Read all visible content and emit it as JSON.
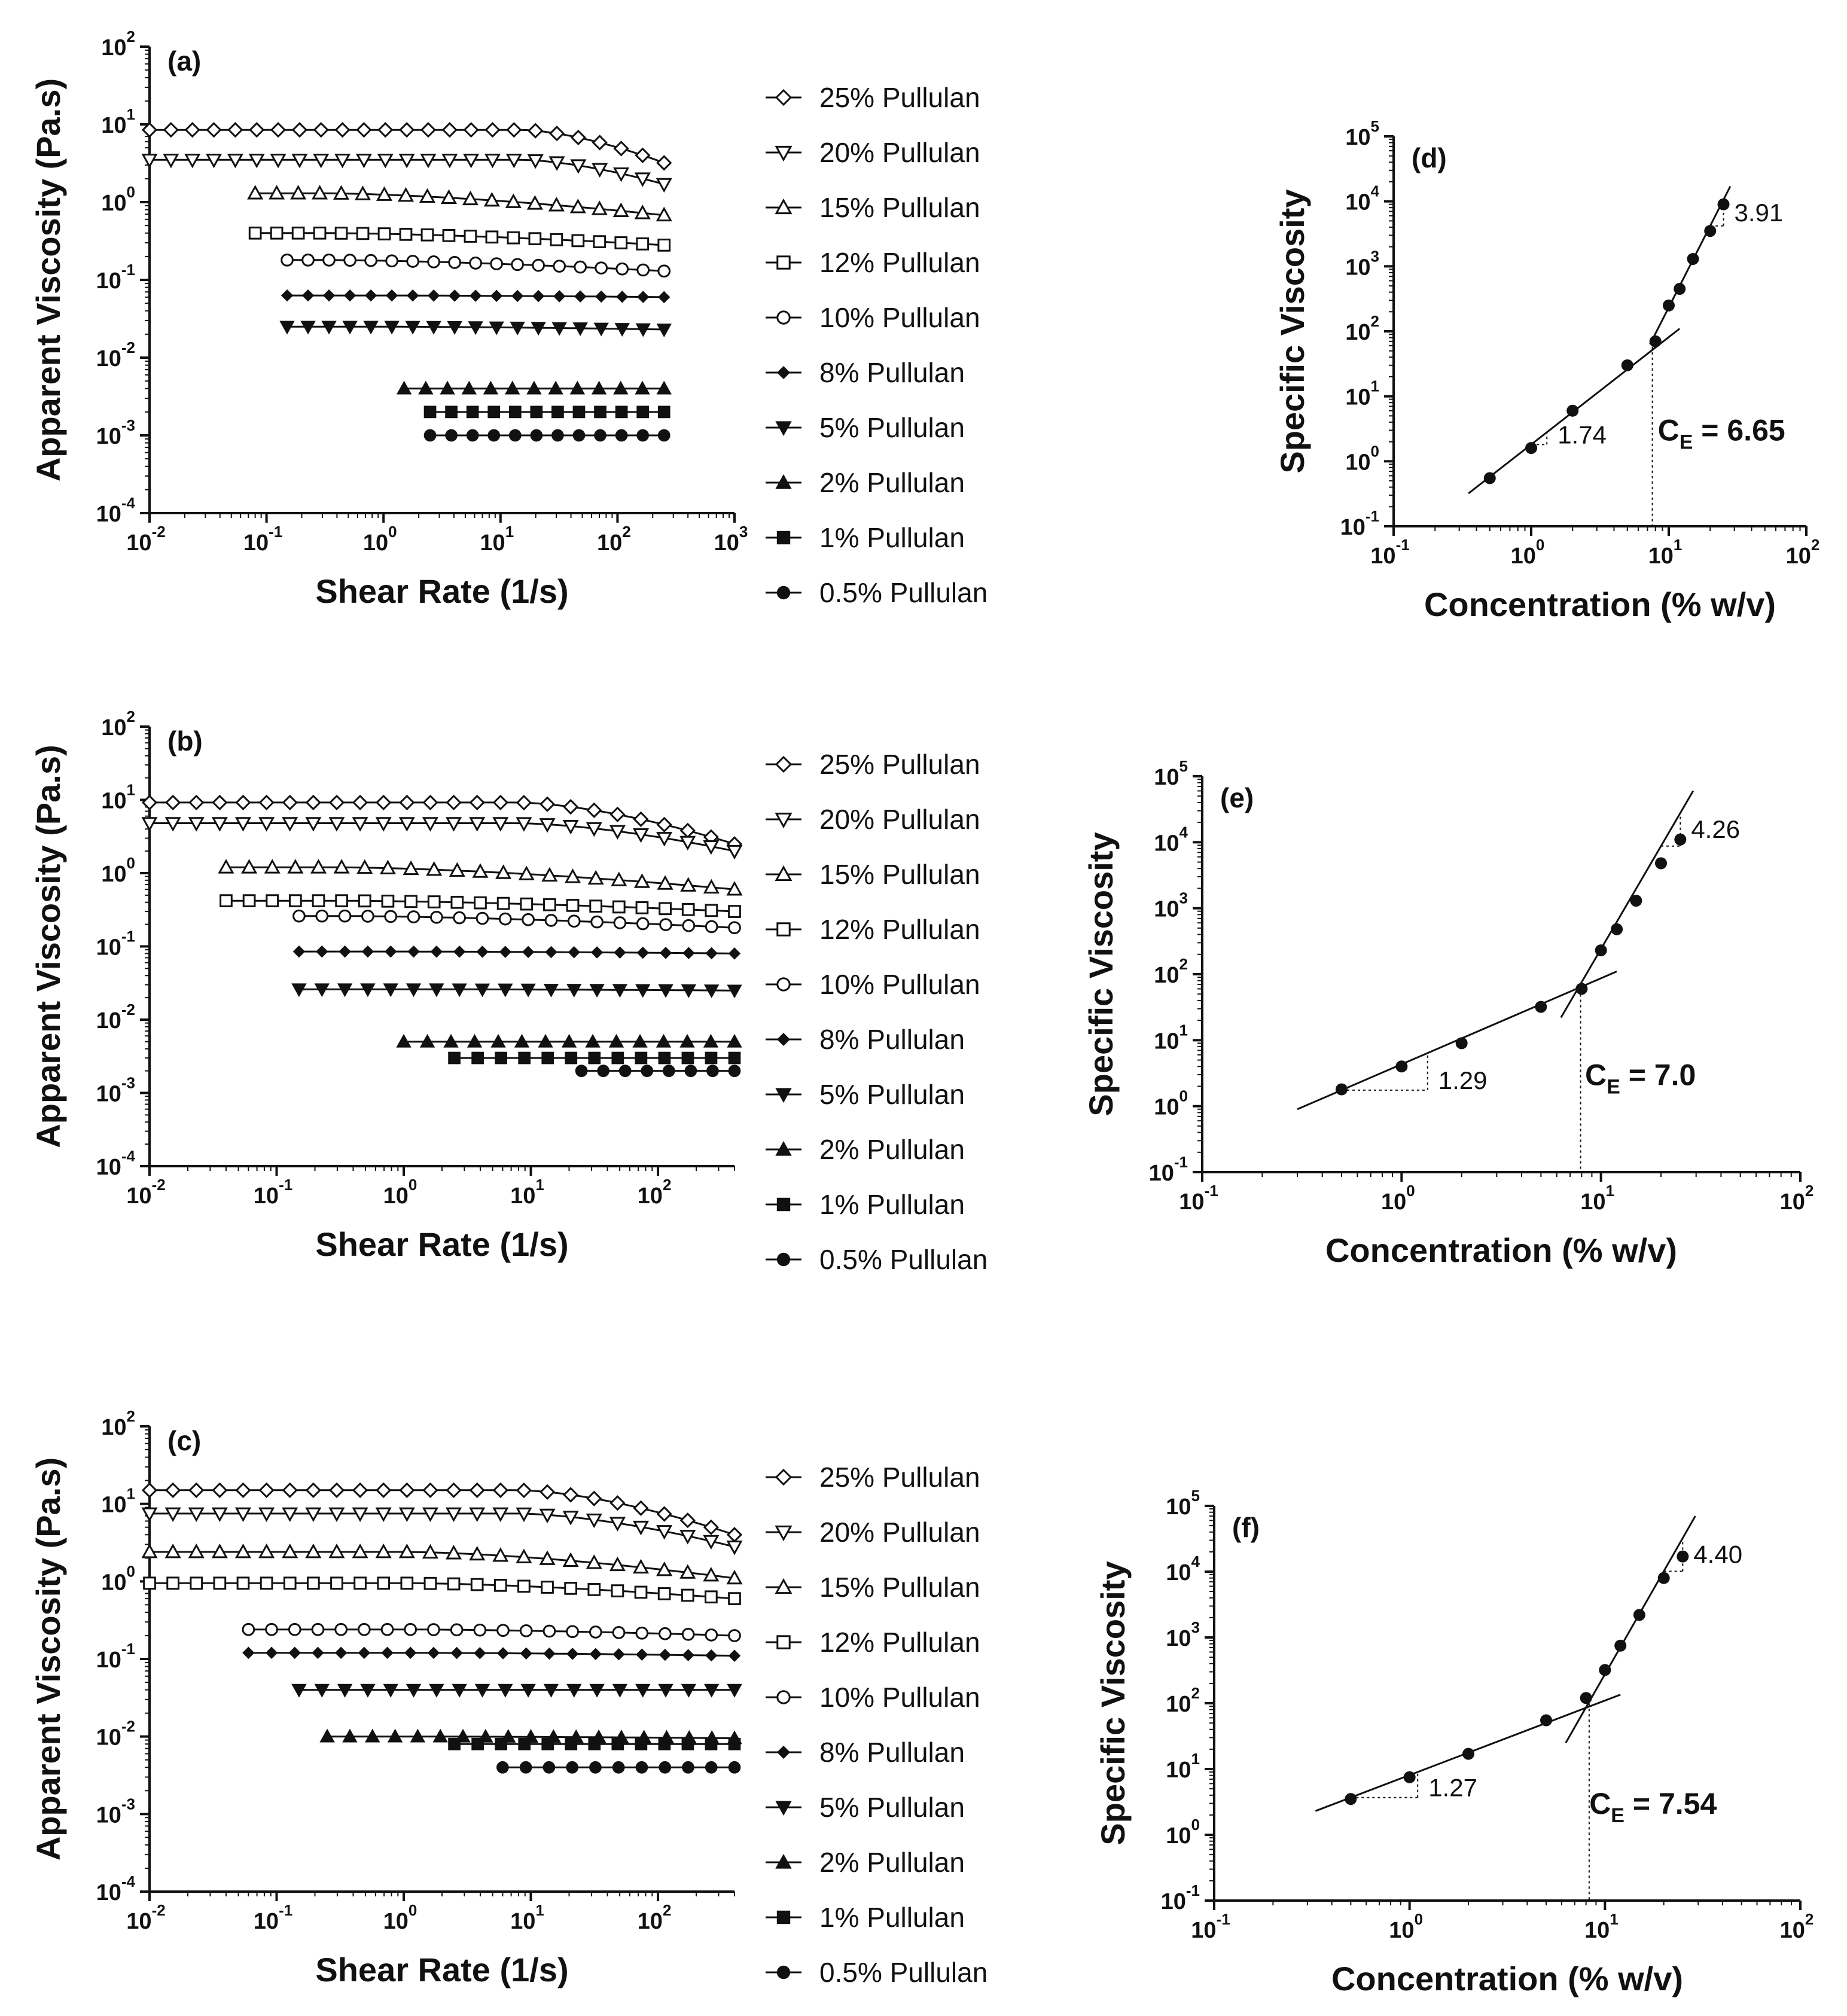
{
  "chart_data": [
    {
      "type": "line",
      "panel_label": "(a)",
      "xlabel": "Shear Rate (1/s)",
      "ylabel": "Apparent Viscosity (Pa.s)",
      "xscale": "log",
      "yscale": "log",
      "xlim": [
        0.01,
        1000
      ],
      "ylim": [
        0.0001,
        100
      ],
      "xticks": [
        0.01,
        0.1,
        1,
        10,
        100,
        1000
      ],
      "yticks": [
        0.0001,
        0.001,
        0.01,
        0.1,
        1,
        10,
        100
      ],
      "legend_position": "right",
      "series": [
        {
          "name": "25% Pullulan",
          "marker": "diamond-open",
          "x_range": [
            0.01,
            250
          ],
          "y_start": 8.5,
          "y_end": 3.2,
          "knee": 15
        },
        {
          "name": "20% Pullulan",
          "marker": "triangle-down-open",
          "x_range": [
            0.01,
            250
          ],
          "y_start": 3.5,
          "y_end": 1.7,
          "knee": 15
        },
        {
          "name": "15% Pullulan",
          "marker": "triangle-up-open",
          "x_range": [
            0.08,
            250
          ],
          "y_start": 1.3,
          "y_end": 0.68,
          "knee": 0.3
        },
        {
          "name": "12% Pullulan",
          "marker": "square-open",
          "x_range": [
            0.08,
            250
          ],
          "y_start": 0.4,
          "y_end": 0.28,
          "knee": 0.3
        },
        {
          "name": "10% Pullulan",
          "marker": "circle-open",
          "x_range": [
            0.15,
            250
          ],
          "y_start": 0.18,
          "y_end": 0.13,
          "knee": 0.3
        },
        {
          "name": "8% Pullulan",
          "marker": "diamond-filled",
          "x_range": [
            0.15,
            250
          ],
          "y_start": 0.063,
          "y_end": 0.06,
          "knee": 1
        },
        {
          "name": "5% Pullulan",
          "marker": "triangle-down-filled",
          "x_range": [
            0.15,
            250
          ],
          "y_start": 0.025,
          "y_end": 0.023,
          "knee": 1
        },
        {
          "name": "2% Pullulan",
          "marker": "triangle-up-filled",
          "x_range": [
            1.5,
            250
          ],
          "y_start": 0.004,
          "y_end": 0.004,
          "knee": 10
        },
        {
          "name": "1% Pullulan",
          "marker": "square-filled",
          "x_range": [
            2.5,
            250
          ],
          "y_start": 0.002,
          "y_end": 0.002,
          "knee": 10
        },
        {
          "name": "0.5% Pullulan",
          "marker": "circle-filled",
          "x_range": [
            2.5,
            250
          ],
          "y_start": 0.001,
          "y_end": 0.001,
          "knee": 10
        }
      ]
    },
    {
      "type": "line",
      "panel_label": "(b)",
      "xlabel": "Shear Rate (1/s)",
      "ylabel": "Apparent Viscosity (Pa.s)",
      "xscale": "log",
      "yscale": "log",
      "xlim": [
        0.01,
        400
      ],
      "ylim": [
        0.0001,
        100
      ],
      "xticks": [
        0.01,
        0.1,
        1,
        10,
        100
      ],
      "yticks": [
        0.0001,
        0.001,
        0.01,
        0.1,
        1,
        10,
        100
      ],
      "legend_position": "right",
      "series": [
        {
          "name": "25% Pullulan",
          "marker": "diamond-open",
          "x_range": [
            0.01,
            400
          ],
          "y_start": 9.2,
          "y_end": 2.5,
          "knee": 8
        },
        {
          "name": "20% Pullulan",
          "marker": "triangle-down-open",
          "x_range": [
            0.01,
            400
          ],
          "y_start": 4.8,
          "y_end": 2.0,
          "knee": 8
        },
        {
          "name": "15% Pullulan",
          "marker": "triangle-up-open",
          "x_range": [
            0.04,
            400
          ],
          "y_start": 1.2,
          "y_end": 0.6,
          "knee": 0.3
        },
        {
          "name": "12% Pullulan",
          "marker": "square-open",
          "x_range": [
            0.04,
            400
          ],
          "y_start": 0.42,
          "y_end": 0.3,
          "knee": 0.3
        },
        {
          "name": "10% Pullulan",
          "marker": "circle-open",
          "x_range": [
            0.15,
            400
          ],
          "y_start": 0.26,
          "y_end": 0.18,
          "knee": 0.3
        },
        {
          "name": "8% Pullulan",
          "marker": "diamond-filled",
          "x_range": [
            0.15,
            400
          ],
          "y_start": 0.085,
          "y_end": 0.08,
          "knee": 1
        },
        {
          "name": "5% Pullulan",
          "marker": "triangle-down-filled",
          "x_range": [
            0.15,
            400
          ],
          "y_start": 0.026,
          "y_end": 0.025,
          "knee": 1
        },
        {
          "name": "2% Pullulan",
          "marker": "triangle-up-filled",
          "x_range": [
            1,
            400
          ],
          "y_start": 0.005,
          "y_end": 0.005,
          "knee": 10
        },
        {
          "name": "1% Pullulan",
          "marker": "square-filled",
          "x_range": [
            2.5,
            400
          ],
          "y_start": 0.003,
          "y_end": 0.003,
          "knee": 10
        },
        {
          "name": "0.5% Pullulan",
          "marker": "circle-filled",
          "x_range": [
            25,
            400
          ],
          "y_start": 0.002,
          "y_end": 0.002,
          "knee": 100
        }
      ]
    },
    {
      "type": "line",
      "panel_label": "(c)",
      "xlabel": "Shear Rate (1/s)",
      "ylabel": "Apparent Viscosity (Pa.s)",
      "xscale": "log",
      "yscale": "log",
      "xlim": [
        0.01,
        400
      ],
      "ylim": [
        0.0001,
        100
      ],
      "xticks": [
        0.01,
        0.1,
        1,
        10,
        100
      ],
      "yticks": [
        0.0001,
        0.001,
        0.01,
        0.1,
        1,
        10,
        100
      ],
      "legend_position": "right",
      "series": [
        {
          "name": "25% Pullulan",
          "marker": "diamond-open",
          "x_range": [
            0.01,
            400
          ],
          "y_start": 15,
          "y_end": 4,
          "knee": 8
        },
        {
          "name": "20% Pullulan",
          "marker": "triangle-down-open",
          "x_range": [
            0.01,
            400
          ],
          "y_start": 7.5,
          "y_end": 2.8,
          "knee": 8
        },
        {
          "name": "15% Pullulan",
          "marker": "triangle-up-open",
          "x_range": [
            0.01,
            400
          ],
          "y_start": 2.4,
          "y_end": 1.1,
          "knee": 1
        },
        {
          "name": "12% Pullulan",
          "marker": "square-open",
          "x_range": [
            0.01,
            400
          ],
          "y_start": 0.95,
          "y_end": 0.6,
          "knee": 1
        },
        {
          "name": "10% Pullulan",
          "marker": "circle-open",
          "x_range": [
            0.06,
            400
          ],
          "y_start": 0.24,
          "y_end": 0.2,
          "knee": 1
        },
        {
          "name": "8% Pullulan",
          "marker": "diamond-filled",
          "x_range": [
            0.06,
            400
          ],
          "y_start": 0.12,
          "y_end": 0.11,
          "knee": 1
        },
        {
          "name": "5% Pullulan",
          "marker": "triangle-down-filled",
          "x_range": [
            0.15,
            400
          ],
          "y_start": 0.04,
          "y_end": 0.04,
          "knee": 1
        },
        {
          "name": "2% Pullulan",
          "marker": "triangle-up-filled",
          "x_range": [
            0.25,
            400
          ],
          "y_start": 0.01,
          "y_end": 0.0095,
          "knee": 1
        },
        {
          "name": "1% Pullulan",
          "marker": "square-filled",
          "x_range": [
            2.5,
            400
          ],
          "y_start": 0.008,
          "y_end": 0.008,
          "knee": 10
        },
        {
          "name": "0.5% Pullulan",
          "marker": "circle-filled",
          "x_range": [
            6,
            400
          ],
          "y_start": 0.004,
          "y_end": 0.004,
          "knee": 100
        }
      ]
    },
    {
      "type": "scatter",
      "panel_label": "(d)",
      "xlabel": "Concentration (% w/v)",
      "ylabel": "Specific Viscosity",
      "xscale": "log",
      "yscale": "log",
      "xlim": [
        0.1,
        100
      ],
      "ylim": [
        0.1,
        100000
      ],
      "xticks": [
        0.1,
        1,
        10,
        100
      ],
      "yticks": [
        0.1,
        1,
        10,
        100,
        1000,
        10000,
        100000
      ],
      "points": {
        "x": [
          0.5,
          1,
          2,
          5,
          8,
          10,
          12,
          15,
          20,
          25
        ],
        "y": [
          0.55,
          1.6,
          6,
          30,
          70,
          250,
          450,
          1300,
          3500,
          9000
        ]
      },
      "fits": [
        {
          "x": [
            0.35,
            12
          ],
          "y": [
            0.32,
            110
          ]
        },
        {
          "x": [
            7.3,
            28
          ],
          "y": [
            63,
            17000
          ]
        }
      ],
      "slopes": [
        {
          "label": "1.74",
          "x_from": 1,
          "x_to": 1.3
        },
        {
          "label": "3.91",
          "x_from": 20,
          "x_to": 25
        }
      ],
      "ce_prefix": "C",
      "ce_sub": "E",
      "ce_value": " = 6.65",
      "ce_x": 7.6
    },
    {
      "type": "scatter",
      "panel_label": "(e)",
      "xlabel": "Concentration (% w/v)",
      "ylabel": "Specific Viscosity",
      "xscale": "log",
      "yscale": "log",
      "xlim": [
        0.1,
        100
      ],
      "ylim": [
        0.1,
        100000
      ],
      "xticks": [
        0.1,
        1,
        10,
        100
      ],
      "yticks": [
        0.1,
        1,
        10,
        100,
        1000,
        10000,
        100000
      ],
      "points": {
        "x": [
          0.5,
          1,
          2,
          5,
          8,
          10,
          12,
          15,
          20,
          25
        ],
        "y": [
          1.8,
          4,
          9,
          32,
          60,
          230,
          480,
          1300,
          4800,
          11000
        ]
      },
      "fits": [
        {
          "x": [
            0.3,
            12
          ],
          "y": [
            0.9,
            110
          ]
        },
        {
          "x": [
            6.3,
            29
          ],
          "y": [
            22,
            60000
          ]
        }
      ],
      "slopes": [
        {
          "label": "1.29",
          "x_from": 0.5,
          "x_to": 1.35
        },
        {
          "label": "4.26",
          "x_from": 20,
          "x_to": 25
        }
      ],
      "ce_prefix": "C",
      "ce_sub": "E",
      "ce_value": " = 7.0",
      "ce_x": 7.9
    },
    {
      "type": "scatter",
      "panel_label": "(f)",
      "xlabel": "Concentration (% w/v)",
      "ylabel": "Specific Viscosity",
      "xscale": "log",
      "yscale": "log",
      "xlim": [
        0.1,
        100
      ],
      "ylim": [
        0.1,
        100000
      ],
      "xticks": [
        0.1,
        1,
        10,
        100
      ],
      "yticks": [
        0.1,
        1,
        10,
        100,
        1000,
        10000,
        100000
      ],
      "points": {
        "x": [
          0.5,
          1,
          2,
          5,
          8,
          10,
          12,
          15,
          20,
          25
        ],
        "y": [
          3.5,
          7.5,
          17,
          55,
          120,
          320,
          750,
          2200,
          8000,
          17000
        ]
      },
      "fits": [
        {
          "x": [
            0.33,
            12
          ],
          "y": [
            2.3,
            135
          ]
        },
        {
          "x": [
            6.3,
            29
          ],
          "y": [
            25,
            70000
          ]
        }
      ],
      "slopes": [
        {
          "label": "1.27",
          "x_from": 0.5,
          "x_to": 1.1
        },
        {
          "label": "4.40",
          "x_from": 20,
          "x_to": 25
        }
      ],
      "ce_prefix": "C",
      "ce_sub": "E",
      "ce_value": " = 7.54",
      "ce_x": 8.3
    }
  ]
}
